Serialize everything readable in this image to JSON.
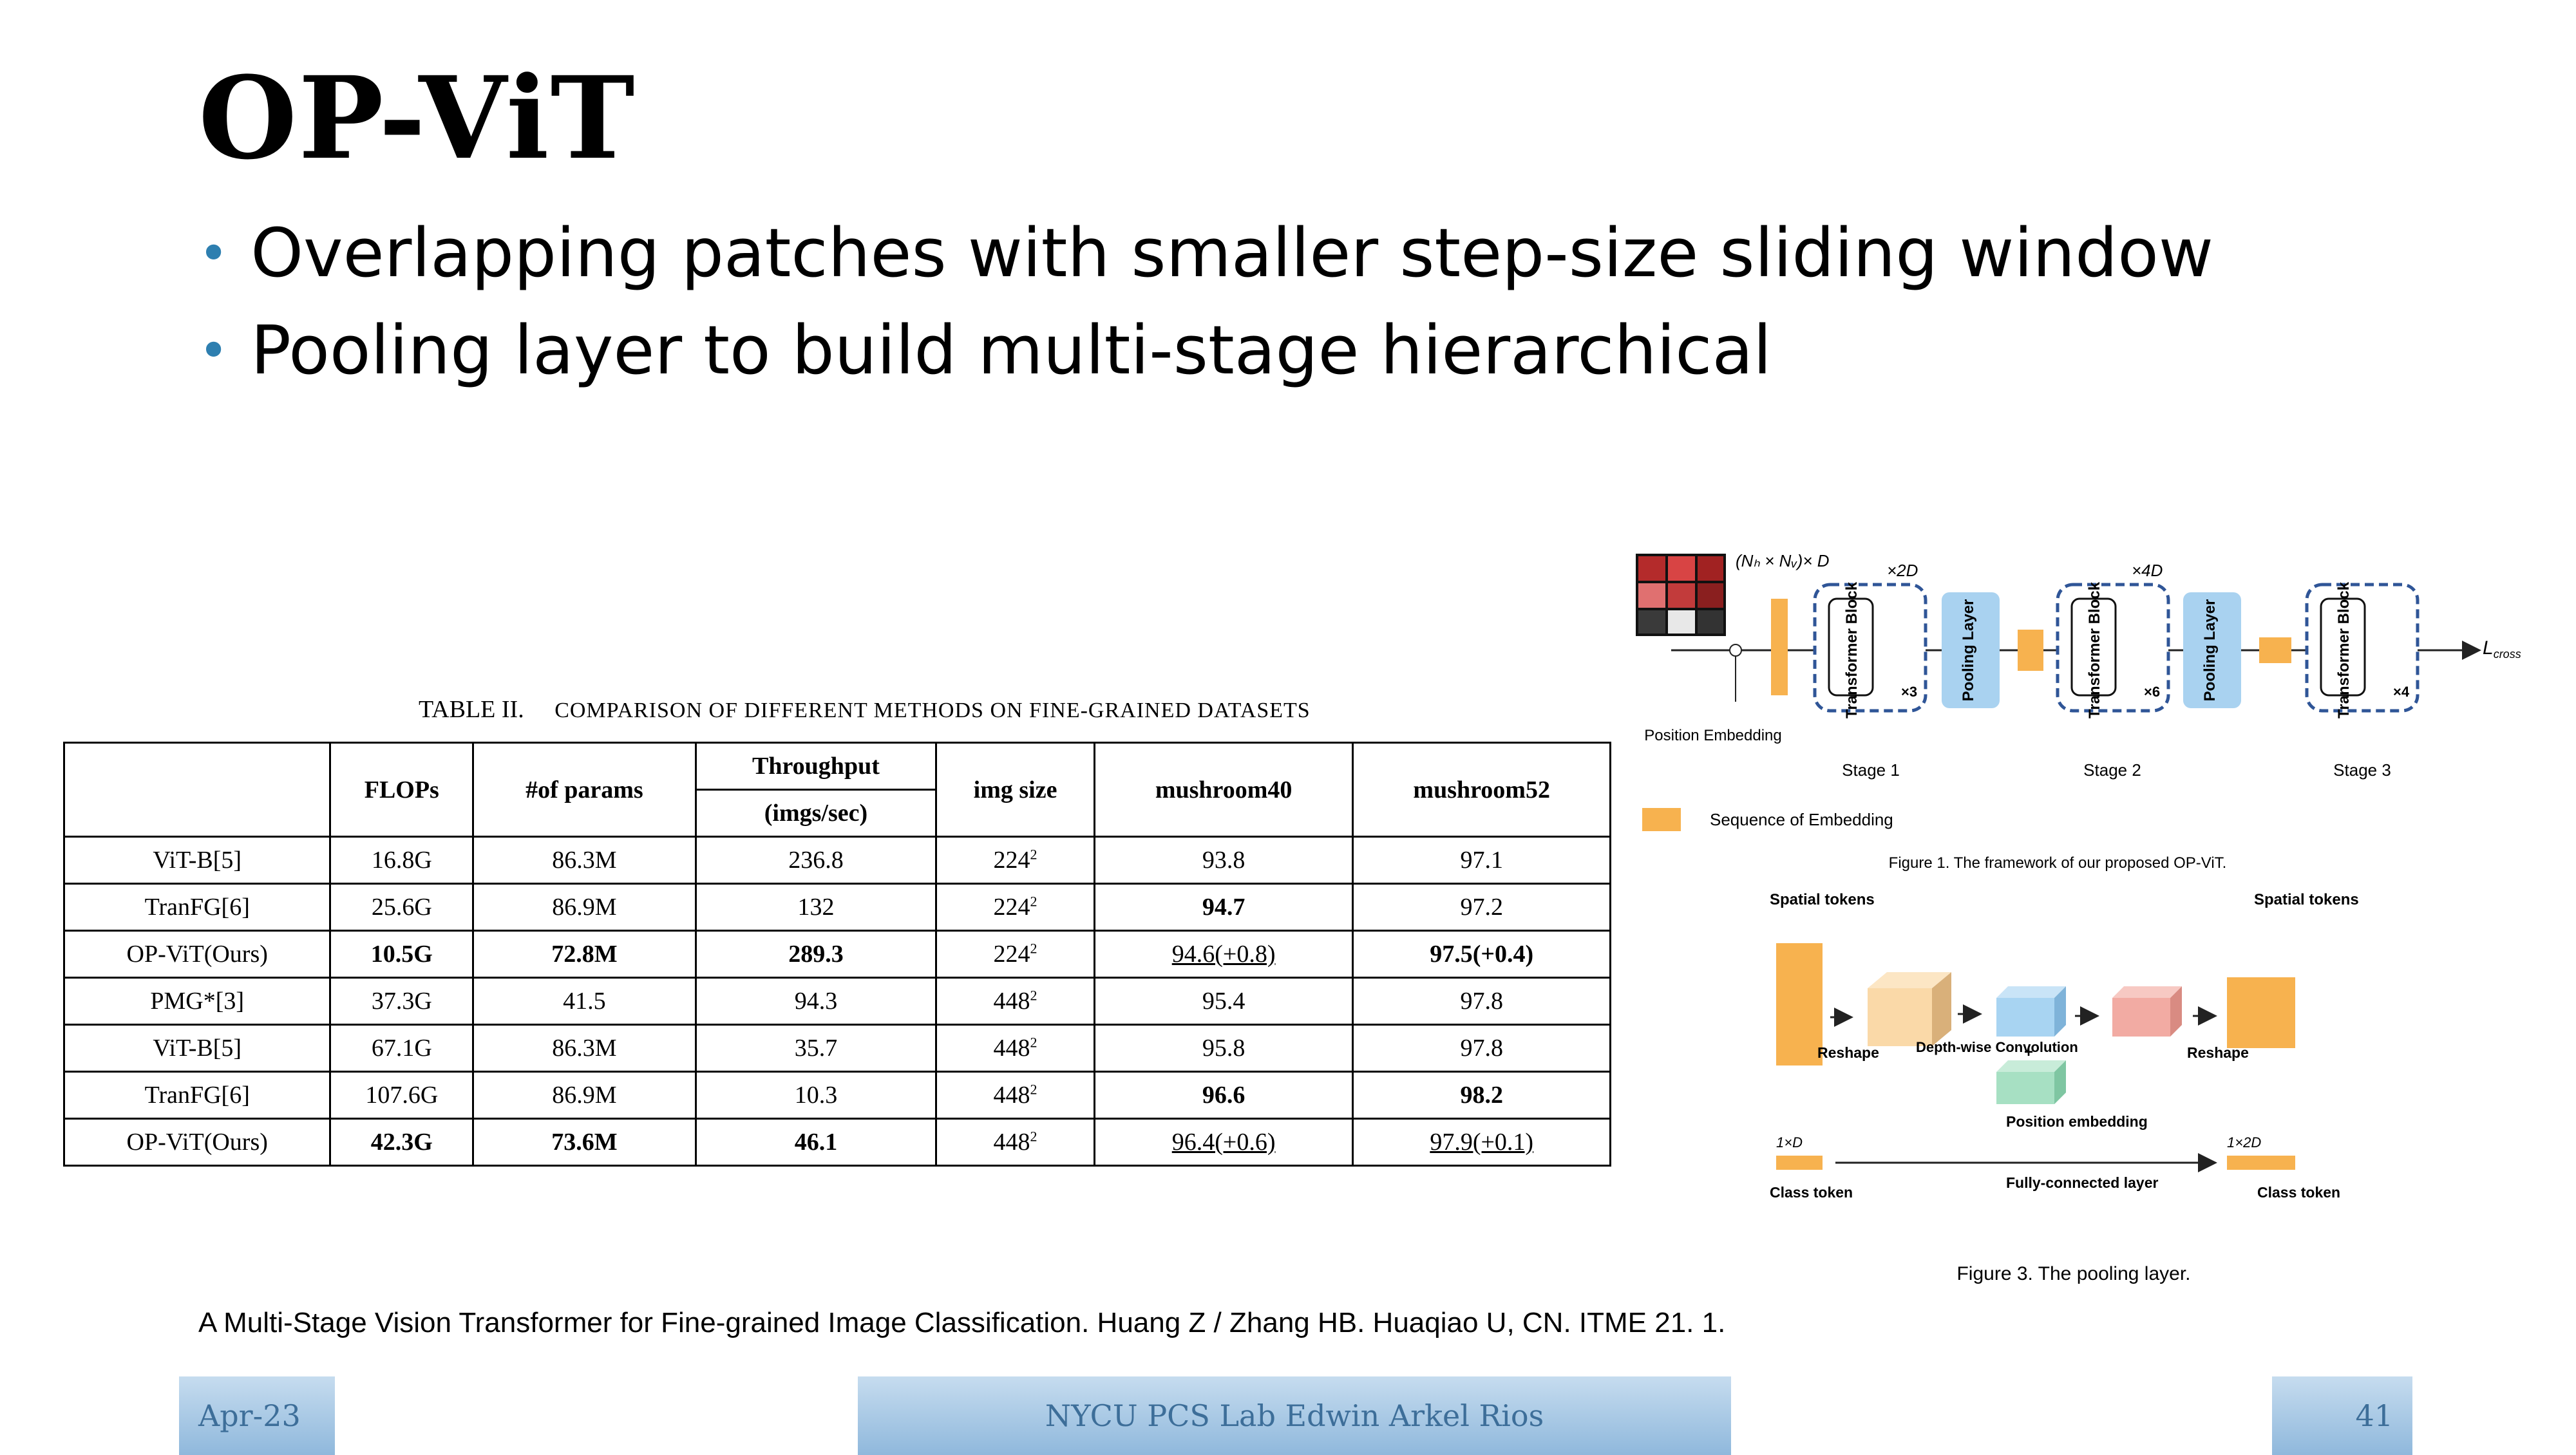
{
  "slide": {
    "title": "OP-ViT",
    "bullets": [
      "Overlapping patches with smaller step-size sliding window",
      "Pooling layer to build multi-stage hierarchical"
    ],
    "reference": "A Multi-Stage Vision Transformer for Fine-grained Image Classification. Huang Z / Zhang HB. Huaqiao U, CN. ITME 21. 1.",
    "footer": {
      "date": "Apr-23",
      "lab": "NYCU PCS Lab Edwin Arkel Rios",
      "page": "41"
    }
  },
  "table": {
    "caption_prefix": "TABLE II.",
    "caption_text": "COMPARISON OF DIFFERENT METHODS ON FINE-GRAINED DATASETS",
    "headers": {
      "flops": "FLOPs",
      "params": "#of params",
      "throughput": "Throughput",
      "throughput_unit": "(imgs/sec)",
      "img_size": "img size",
      "mushroom40": "mushroom40",
      "mushroom52": "mushroom52"
    },
    "rows": [
      {
        "method": "ViT-B[5]",
        "flops": "16.8G",
        "params": "86.3M",
        "throughput": "236.8",
        "img": "224",
        "m40": "93.8",
        "m52": "97.1"
      },
      {
        "method": "TranFG[6]",
        "flops": "25.6G",
        "params": "86.9M",
        "throughput": "132",
        "img": "224",
        "m40": "94.7",
        "m52": "97.2"
      },
      {
        "method": "OP-ViT(Ours)",
        "flops": "10.5G",
        "params": "72.8M",
        "throughput": "289.3",
        "img": "224",
        "m40": "94.6(+0.8)",
        "m52": "97.5(+0.4)"
      },
      {
        "method": "PMG*[3]",
        "flops": "37.3G",
        "params": "41.5",
        "throughput": "94.3",
        "img": "448",
        "m40": "95.4",
        "m52": "97.8"
      },
      {
        "method": "ViT-B[5]",
        "flops": "67.1G",
        "params": "86.3M",
        "throughput": "35.7",
        "img": "448",
        "m40": "95.8",
        "m52": "97.8"
      },
      {
        "method": "TranFG[6]",
        "flops": "107.6G",
        "params": "86.9M",
        "throughput": "10.3",
        "img": "448",
        "m40": "96.6",
        "m52": "98.2"
      },
      {
        "method": "OP-ViT(Ours)",
        "flops": "42.3G",
        "params": "73.6M",
        "throughput": "46.1",
        "img": "448",
        "m40": "96.4(+0.6)",
        "m52": "97.9(+0.1)"
      }
    ],
    "exponent": "2"
  },
  "fig1": {
    "dim1": "(Nₕ × Nᵥ)× D",
    "dim2": "×2D",
    "dim3": "×4D",
    "block_transformer": "Transformer Block",
    "block_pooling": "Pooling Layer",
    "reps": [
      "×3",
      "×6",
      "×4"
    ],
    "stages": [
      "Stage 1",
      "Stage 2",
      "Stage 3"
    ],
    "position_embedding": "Position Embedding",
    "legend": "Sequence of Embedding",
    "loss": "L",
    "loss_sub": "cross",
    "caption": "Figure 1. The framework of our proposed OP-ViT.",
    "colors": {
      "token": "#f7b24f",
      "block": "#a9d2f0",
      "dash": "#2f5597"
    }
  },
  "fig3": {
    "spatial_tokens": "Spatial tokens",
    "reshape": "Reshape",
    "depthwise": "Depth-wise Convolution",
    "position_embedding": "Position embedding",
    "fc_layer": "Fully-connected layer",
    "class_token": "Class token",
    "dim_in": "1×D",
    "dim_out": "1×2D",
    "caption": "Figure 3.   The pooling layer.",
    "colors": {
      "orange": "#f7b24f",
      "peach": "#fad9a8",
      "blue": "#a8d4f2",
      "pink": "#f2aba3",
      "green": "#a7e0c3"
    }
  }
}
